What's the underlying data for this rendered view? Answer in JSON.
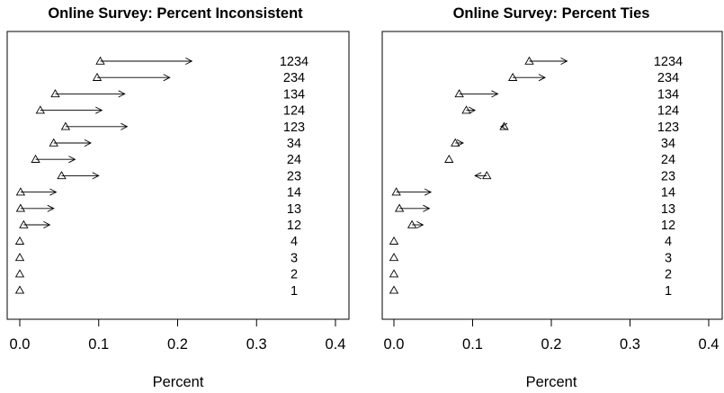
{
  "chart_data": [
    {
      "type": "arrow-dotplot",
      "title": "Online Survey: Percent Inconsistent",
      "xlabel": "Percent",
      "ylabel": "",
      "xlim": [
        0,
        0.4
      ],
      "xticks": [
        "0.0",
        "0.1",
        "0.2",
        "0.3",
        "0.4"
      ],
      "categories": [
        "1234",
        "234",
        "134",
        "124",
        "123",
        "34",
        "24",
        "23",
        "14",
        "13",
        "12",
        "4",
        "3",
        "2",
        "1"
      ],
      "series": [
        {
          "marker": "triangle",
          "values": [
            0.102,
            0.098,
            0.045,
            0.026,
            0.058,
            0.043,
            0.02,
            0.053,
            0.001,
            0.001,
            0.005,
            0.0,
            0.0,
            0.0,
            0.0
          ]
        },
        {
          "marker": "arrowhead",
          "values": [
            0.218,
            0.19,
            0.133,
            0.104,
            0.136,
            0.09,
            0.07,
            0.1,
            0.046,
            0.043,
            0.038,
            null,
            null,
            null,
            null
          ]
        }
      ]
    },
    {
      "type": "arrow-dotplot",
      "title": "Online Survey: Percent Ties",
      "xlabel": "Percent",
      "ylabel": "",
      "xlim": [
        0,
        0.4
      ],
      "xticks": [
        "0.0",
        "0.1",
        "0.2",
        "0.3",
        "0.4"
      ],
      "categories": [
        "1234",
        "234",
        "134",
        "124",
        "123",
        "34",
        "24",
        "23",
        "14",
        "13",
        "12",
        "4",
        "3",
        "2",
        "1"
      ],
      "series": [
        {
          "marker": "triangle",
          "values": [
            0.172,
            0.151,
            0.083,
            0.092,
            0.14,
            0.078,
            0.07,
            0.118,
            0.003,
            0.007,
            0.023,
            0.0,
            0.0,
            0.0,
            0.0
          ]
        },
        {
          "marker": "arrowhead",
          "values": [
            0.22,
            0.192,
            0.132,
            0.103,
            0.136,
            0.088,
            null,
            0.103,
            0.047,
            0.045,
            0.037,
            null,
            null,
            null,
            null
          ]
        }
      ]
    }
  ]
}
